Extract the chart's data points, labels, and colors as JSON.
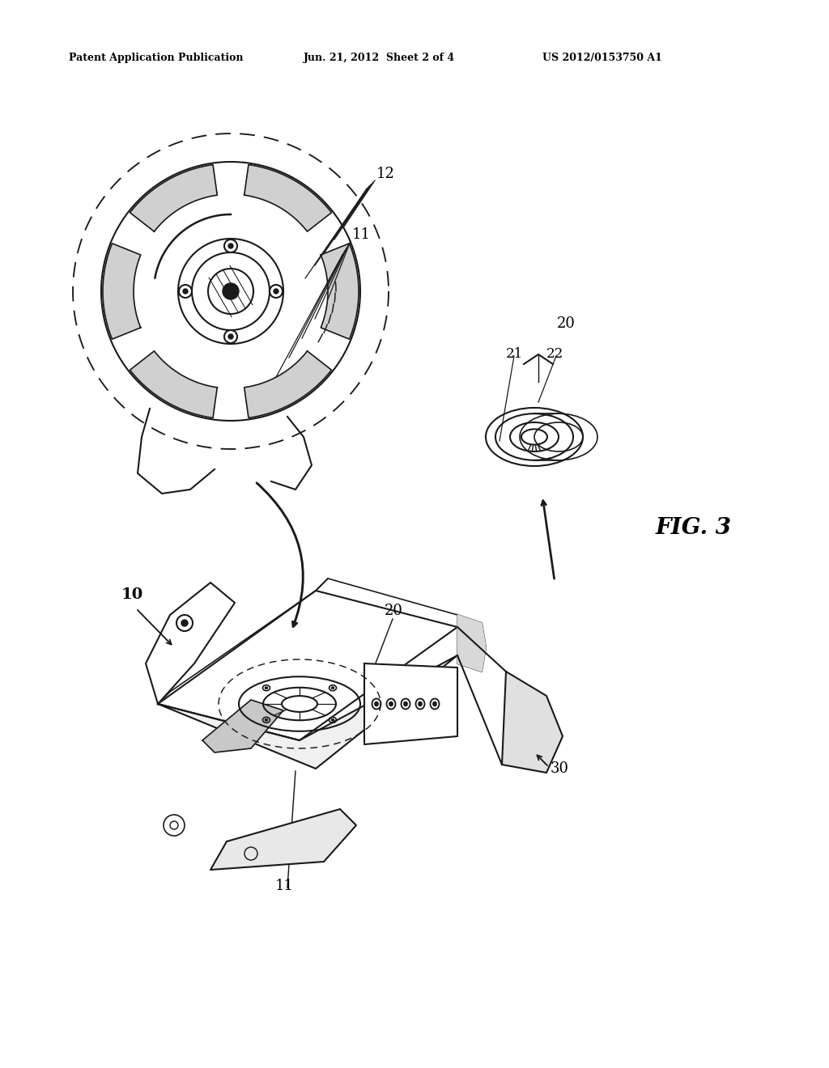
{
  "bg_color": "#ffffff",
  "header_left": "Patent Application Publication",
  "header_mid": "Jun. 21, 2012  Sheet 2 of 4",
  "header_right": "US 2012/0153750 A1",
  "fig_label": "FIG. 3",
  "line_color": "#1a1a1a",
  "line_width": 1.5
}
